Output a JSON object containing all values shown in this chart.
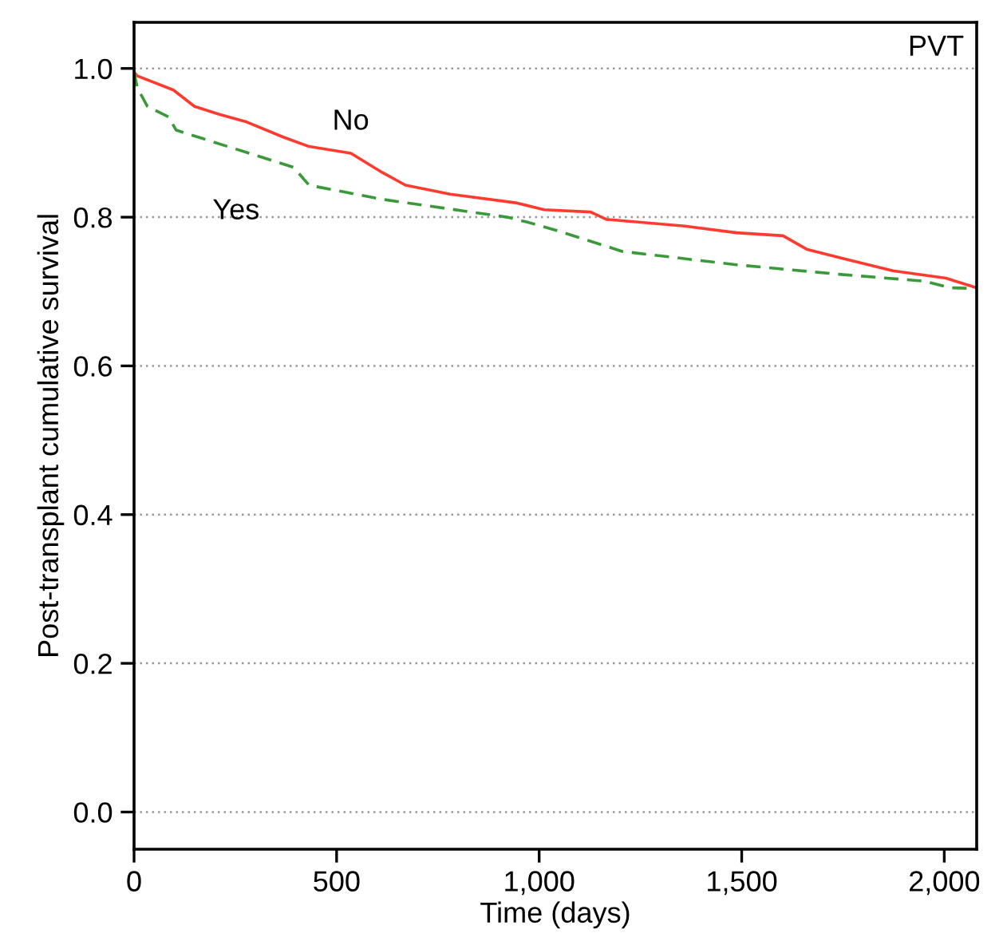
{
  "chart_data": {
    "type": "line",
    "xlabel": "Time (days)",
    "ylabel": "Post-transplant cumulative survival",
    "legend_title": "PVT",
    "xlim": [
      0,
      2080
    ],
    "xticks": [
      0,
      500,
      {
        "value": 1000,
        "label": "1,000"
      },
      {
        "value": 1500,
        "label": "1,500"
      },
      {
        "value": 2000,
        "label": "2,000"
      }
    ],
    "ylim": [
      -0.05,
      1.062
    ],
    "yticks": [
      {
        "value": 0,
        "label": "0.0"
      },
      0.2,
      0.4,
      0.6,
      0.8,
      {
        "value": 1,
        "label": "1.0"
      }
    ],
    "grid": "y",
    "legend": false,
    "marker": "none",
    "series": [
      {
        "name": "No",
        "color": "#ff3b30",
        "line_style": "solid",
        "x": [
          0,
          8,
          97,
          149,
          212,
          278,
          367,
          432,
          535,
          613,
          670,
          780,
          946,
          1012,
          1127,
          1166,
          1359,
          1487,
          1602,
          1660,
          1745,
          1873,
          2004,
          2080
        ],
        "values": [
          0.995,
          0.99,
          0.971,
          0.949,
          0.938,
          0.928,
          0.908,
          0.895,
          0.886,
          0.86,
          0.843,
          0.831,
          0.819,
          0.81,
          0.807,
          0.797,
          0.788,
          0.779,
          0.775,
          0.757,
          0.745,
          0.728,
          0.718,
          0.705
        ]
      },
      {
        "name": "Yes",
        "color": "#3a9a3a",
        "line_style": "dashed",
        "x": [
          0,
          8,
          33,
          85,
          104,
          394,
          432,
          613,
          921,
          973,
          1050,
          1205,
          1487,
          1745,
          1950,
          2015,
          2080
        ],
        "values": [
          0.995,
          0.974,
          0.949,
          0.935,
          0.917,
          0.867,
          0.843,
          0.824,
          0.8,
          0.793,
          0.781,
          0.754,
          0.736,
          0.723,
          0.714,
          0.705,
          0.704
        ]
      }
    ]
  }
}
